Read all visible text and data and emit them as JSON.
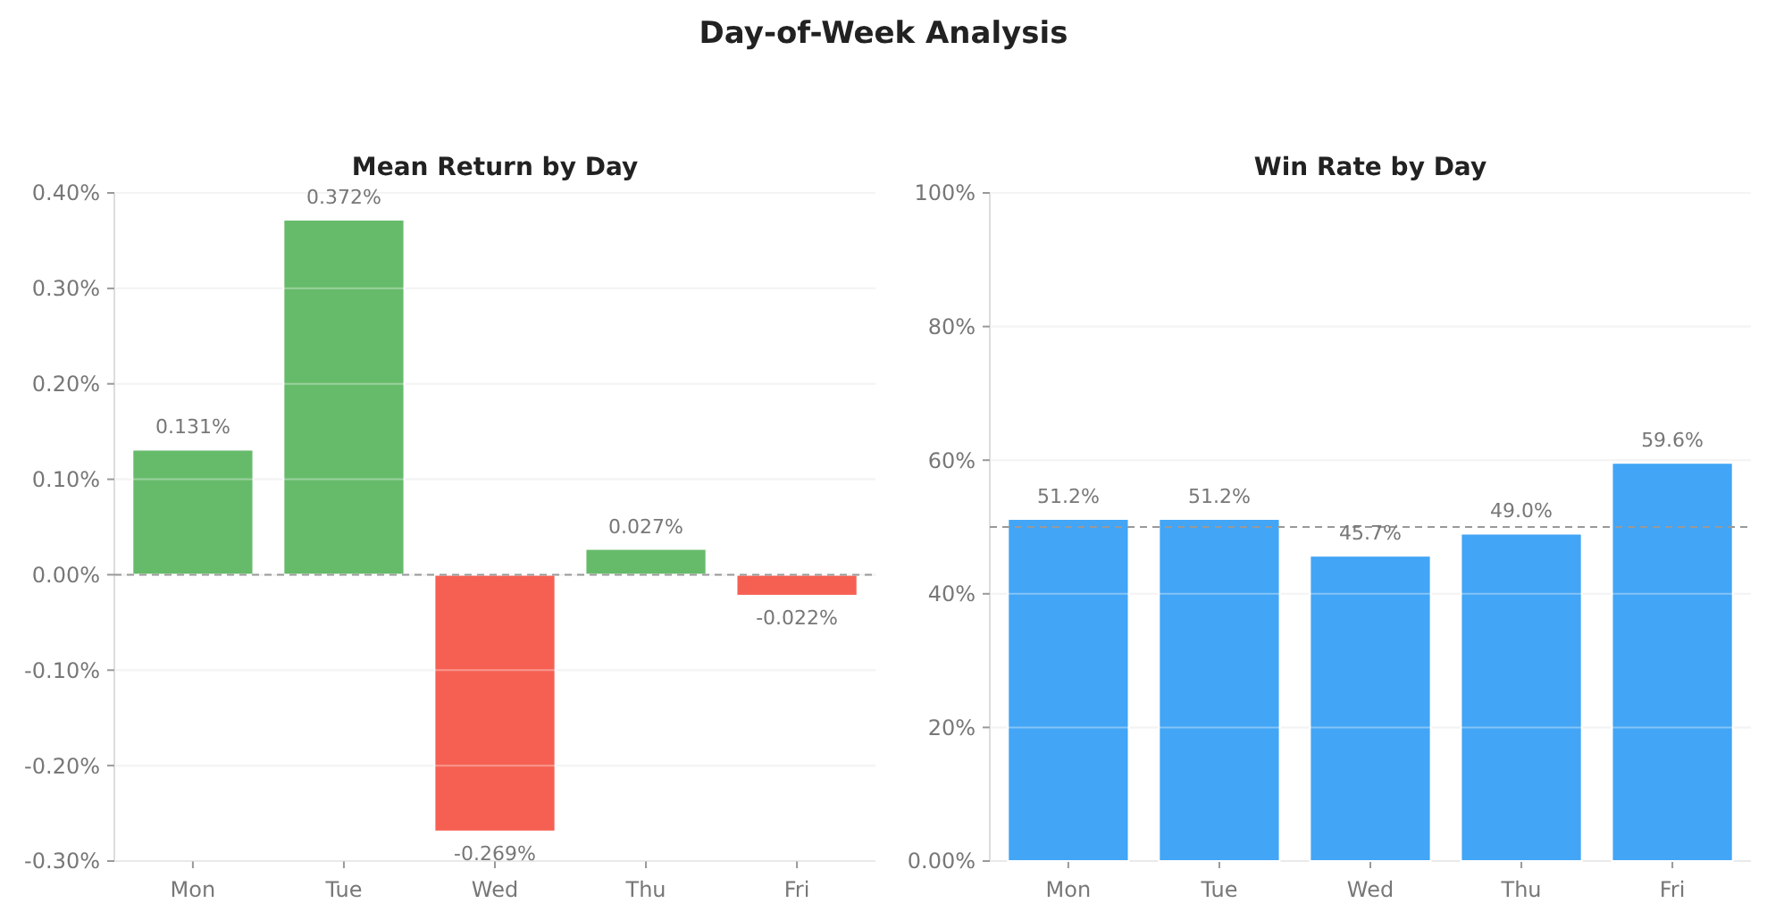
{
  "chart_data": [
    {
      "type": "other",
      "title": "Day-of-Week Analysis"
    },
    {
      "type": "bar",
      "title": "Mean Return by Day",
      "categories": [
        "Mon",
        "Tue",
        "Wed",
        "Thu",
        "Fri"
      ],
      "values": [
        0.131,
        0.372,
        -0.269,
        0.027,
        -0.022
      ],
      "colors": [
        "#66bb6a",
        "#66bb6a",
        "#f66053",
        "#66bb6a",
        "#f66053"
      ],
      "value_labels": [
        "0.131%",
        "0.372%",
        "-0.269%",
        "0.027%",
        "-0.022%"
      ],
      "ylim": [
        -0.3,
        0.4
      ],
      "yticks": [
        {
          "value": -0.3,
          "label": "-0.30%"
        },
        {
          "value": -0.2,
          "label": "-0.20%"
        },
        {
          "value": -0.1,
          "label": "-0.10%"
        },
        {
          "value": 0,
          "label": "0.00%"
        },
        {
          "value": 0.1,
          "label": "0.10%"
        },
        {
          "value": 0.2,
          "label": "0.20%"
        },
        {
          "value": 0.3,
          "label": "0.30%"
        },
        {
          "value": 0.4,
          "label": "0.40%"
        }
      ],
      "grid": "y",
      "ref_lines": [
        {
          "axis": "y",
          "value": 0,
          "color": "#999999",
          "line_style": "dashed"
        }
      ]
    },
    {
      "type": "bar",
      "title": "Win Rate by Day",
      "categories": [
        "Mon",
        "Tue",
        "Wed",
        "Thu",
        "Fri"
      ],
      "values": [
        51.2,
        51.2,
        45.7,
        49.0,
        59.6
      ],
      "color": "#42a5f5",
      "value_labels": [
        "51.2%",
        "51.2%",
        "45.7%",
        "49.0%",
        "59.6%"
      ],
      "ylim": [
        0,
        100
      ],
      "yticks": [
        {
          "value": 0,
          "label": "0.00%"
        },
        {
          "value": 20,
          "label": "20%"
        },
        {
          "value": 40,
          "label": "40%"
        },
        {
          "value": 60,
          "label": "60%"
        },
        {
          "value": 80,
          "label": "80%"
        },
        {
          "value": 100,
          "label": "100%"
        }
      ],
      "grid": "y",
      "ref_lines": [
        {
          "axis": "y",
          "value": 50,
          "color": "#999999",
          "line_style": "dashed"
        }
      ]
    }
  ]
}
